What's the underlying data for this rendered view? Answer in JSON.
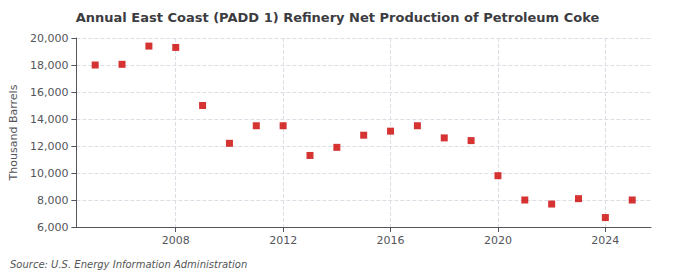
{
  "chart_data": {
    "type": "scatter",
    "title": "Annual East Coast (PADD 1) Refinery Net Production of Petroleum Coke",
    "ylabel": "Thousand Barrels",
    "annotation": "Source: U.S. Energy Information Administration",
    "x": [
      2005,
      2006,
      2007,
      2008,
      2009,
      2010,
      2011,
      2012,
      2013,
      2014,
      2015,
      2016,
      2017,
      2018,
      2019,
      2020,
      2021,
      2022,
      2023,
      2024,
      2025
    ],
    "values": [
      18000,
      18050,
      19400,
      19300,
      15000,
      12200,
      13500,
      13500,
      11300,
      11900,
      12800,
      13100,
      13500,
      12600,
      12400,
      9800,
      8000,
      7700,
      8100,
      6700,
      8000
    ],
    "color": "#cc0000",
    "marker": "square",
    "xlim": [
      2004.3,
      2025.7
    ],
    "xticks": [
      2008,
      2012,
      2016,
      2020,
      2024
    ],
    "ylim": [
      6000,
      20000
    ],
    "yticks": [
      {
        "value": 6000,
        "label": "6,000"
      },
      {
        "value": 8000,
        "label": "8,000"
      },
      {
        "value": 10000,
        "label": "10,000"
      },
      {
        "value": 12000,
        "label": "12,000"
      },
      {
        "value": 14000,
        "label": "14,000"
      },
      {
        "value": 16000,
        "label": "16,000"
      },
      {
        "value": 18000,
        "label": "18,000"
      },
      {
        "value": 20000,
        "label": "20,000"
      }
    ],
    "grid": true
  }
}
